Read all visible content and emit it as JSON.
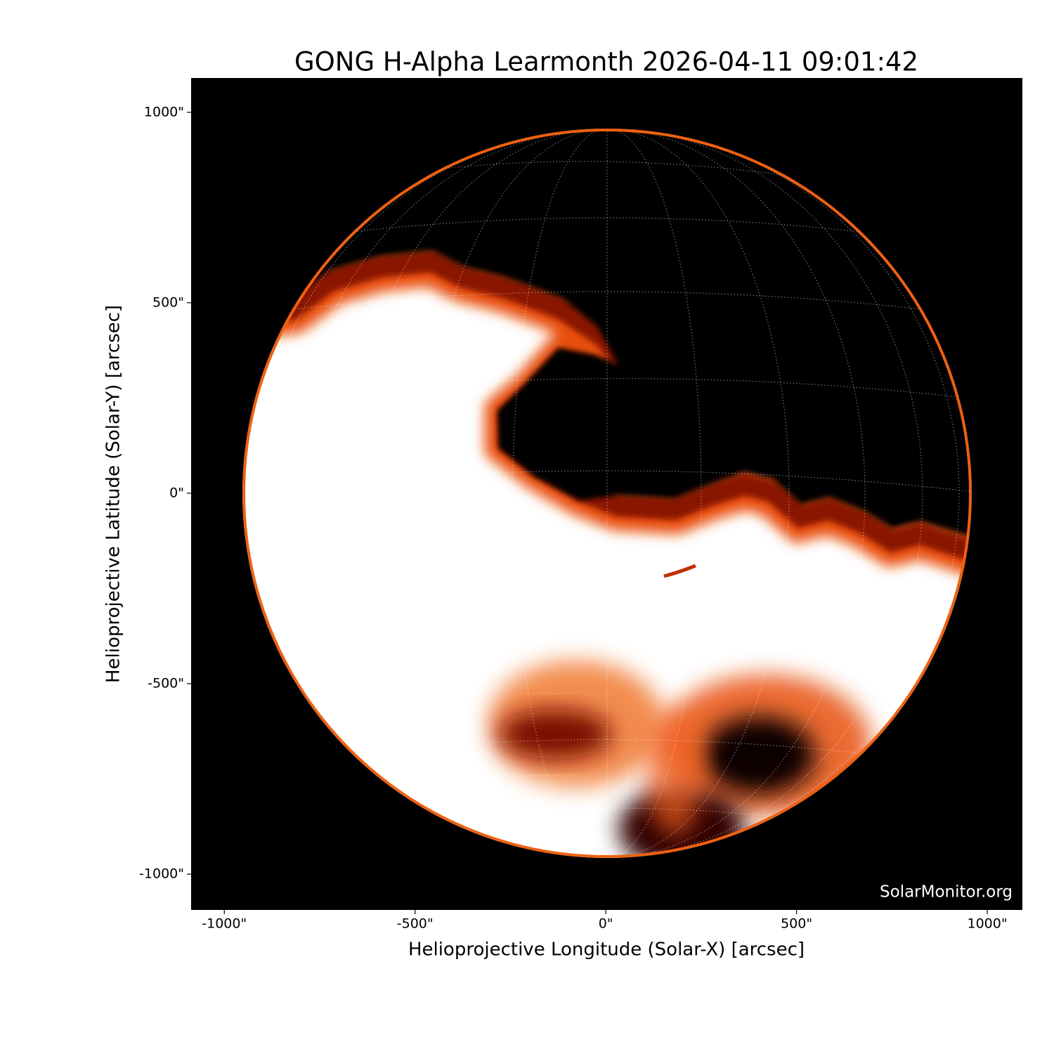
{
  "chart_data": {
    "type": "image",
    "title": "GONG H-Alpha Learmonth 2026-04-11 09:01:42",
    "x_label": "Helioprojective Longitude (Solar-X) [arcsec]",
    "y_label": "Helioprojective Latitude (Solar-Y) [arcsec]",
    "annotation": "SolarMonitor.org",
    "xlim": [
      -1087,
      1092
    ],
    "ylim": [
      -1094,
      1090
    ],
    "xticks": [
      {
        "value": -1000,
        "label": "-1000\""
      },
      {
        "value": -500,
        "label": "-500\""
      },
      {
        "value": 0,
        "label": "0\""
      },
      {
        "value": 500,
        "label": "500\""
      },
      {
        "value": 1000,
        "label": "1000\""
      }
    ],
    "yticks": [
      {
        "value": -1000,
        "label": "-1000\""
      },
      {
        "value": -500,
        "label": "-500\""
      },
      {
        "value": 0,
        "label": "0\""
      },
      {
        "value": 500,
        "label": "500\""
      },
      {
        "value": 1000,
        "label": "1000\""
      }
    ]
  }
}
